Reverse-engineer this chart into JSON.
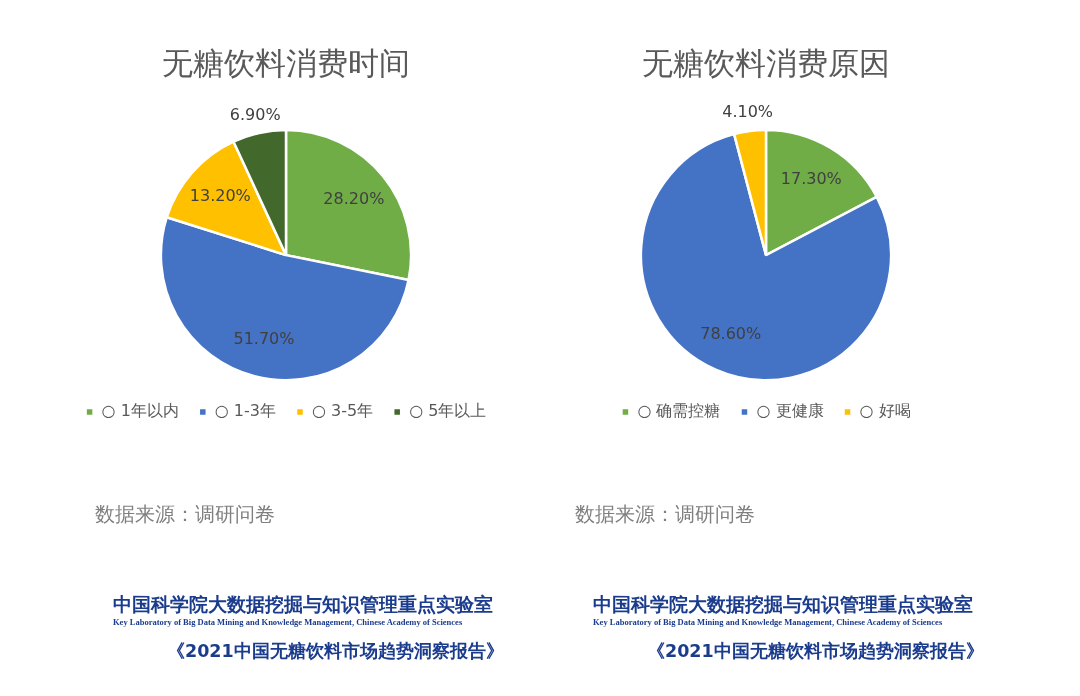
{
  "chart_data": [
    {
      "type": "pie",
      "title": "无糖饮料消费时间",
      "categories": [
        "○ 1年以内",
        "○ 1-3年",
        "○ 3-5年",
        "○ 5年以上"
      ],
      "values": [
        28.2,
        51.7,
        13.2,
        6.9
      ],
      "colors": [
        "#70ad47",
        "#4472c4",
        "#ffc000",
        "#43682b"
      ],
      "value_labels": [
        "28.20%",
        "51.70%",
        "13.20%",
        "6.90%"
      ],
      "legend": "bottom",
      "annotations": [
        "数据来源：调研问卷",
        "中国科学院大数据挖掘与知识管理重点实验室",
        "Key Laboratory of Big Data Mining and Knowledge Management, Chinese Academy of Sciences",
        "《2021中国无糖饮料市场趋势洞察报告》"
      ]
    },
    {
      "type": "pie",
      "title": "无糖饮料消费原因",
      "categories": [
        "○ 确需控糖",
        "○ 更健康",
        "○ 好喝"
      ],
      "values": [
        17.3,
        78.6,
        4.1
      ],
      "colors": [
        "#70ad47",
        "#4472c4",
        "#ffc000"
      ],
      "value_labels": [
        "17.30%",
        "78.60%",
        "4.10%"
      ],
      "legend": "bottom",
      "annotations": [
        "数据来源：调研问卷",
        "中国科学院大数据挖掘与知识管理重点实验室",
        "Key Laboratory of Big Data Mining and Knowledge Management, Chinese Academy of Sciences",
        "《2021中国无糖饮料市场趋势洞察报告》"
      ]
    }
  ]
}
